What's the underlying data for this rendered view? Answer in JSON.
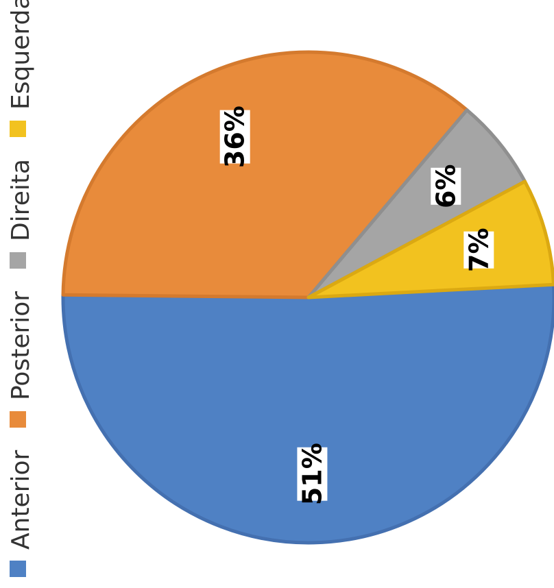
{
  "chart_data": {
    "type": "pie",
    "title": "",
    "categories": [
      "Anterior",
      "Posterior",
      "Direita",
      "Esquerda"
    ],
    "values": [
      51,
      36,
      6,
      7
    ],
    "labels": [
      "51%",
      "36%",
      "6%",
      "7%"
    ],
    "unit": "%",
    "colors": [
      "#4F81C4",
      "#E88B3B",
      "#A5A5A5",
      "#F2C21F"
    ],
    "edge_colors": [
      "#4470B0",
      "#D47A2E",
      "#8F8F8F",
      "#DBA912"
    ],
    "legend": {
      "placement": "left",
      "orientation": "rotated-vertical",
      "entries": [
        "Anterior",
        "Posterior",
        "Direita",
        "Esquerda"
      ]
    },
    "image_rotation": "90° counter-clockwise",
    "start_angle_deg": -3
  }
}
